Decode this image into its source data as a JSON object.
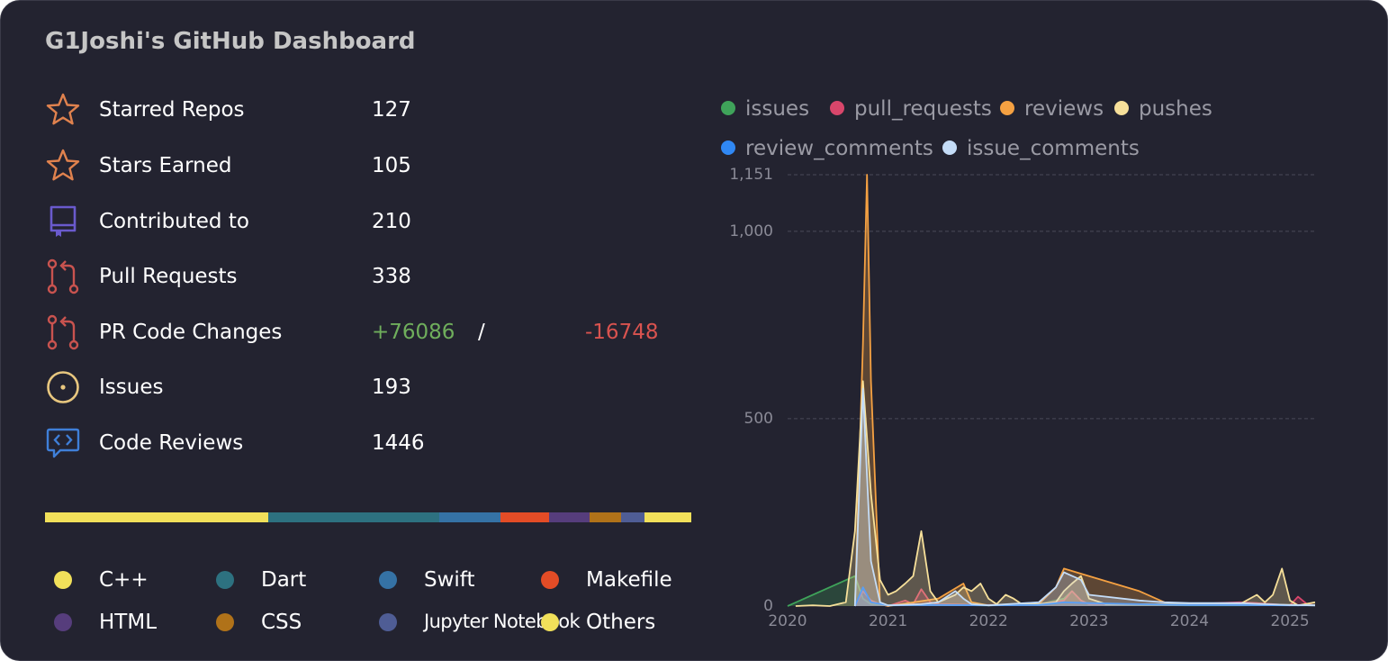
{
  "title": "G1Joshi's GitHub Dashboard",
  "colors": {
    "background": "#232330",
    "star": "#e0824e",
    "repo": "#6a5acd",
    "pr": "#c9534f",
    "issue": "#e8c77f",
    "review": "#3f7fd8",
    "plus": "#6fae5c",
    "minus": "#d9534f"
  },
  "stats": [
    {
      "icon": "star-icon",
      "label": "Starred Repos",
      "value": "127"
    },
    {
      "icon": "star-icon",
      "label": "Stars Earned",
      "value": "105"
    },
    {
      "icon": "repo-icon",
      "label": "Contributed to",
      "value": "210"
    },
    {
      "icon": "pull-request-icon",
      "label": "Pull Requests",
      "value": "338"
    },
    {
      "icon": "pull-request-icon",
      "label": "PR Code Changes",
      "plus": "+76086",
      "slash": "/",
      "minus": "-16748"
    },
    {
      "icon": "issue-icon",
      "label": "Issues",
      "value": "193"
    },
    {
      "icon": "code-review-icon",
      "label": "Code Reviews",
      "value": "1446"
    }
  ],
  "languages": [
    {
      "name": "C++",
      "color": "#f1e05a",
      "share": 34.5
    },
    {
      "name": "Dart",
      "color": "#2d7180",
      "share": 26.5
    },
    {
      "name": "Swift",
      "color": "#3572a5",
      "share": 9.5
    },
    {
      "name": "Makefile",
      "color": "#e34c26",
      "share": 7.5
    },
    {
      "name": "HTML",
      "color": "#563d7c",
      "share": 6.3
    },
    {
      "name": "CSS",
      "color": "#b07219",
      "share": 4.8
    },
    {
      "name": "Jupyter Notebook",
      "color": "#4f5d95",
      "share": 3.6
    },
    {
      "name": "Others",
      "color": "#f1e05a",
      "share": 7.3
    }
  ],
  "chart_data": {
    "type": "area",
    "legend_position": "top",
    "grid": true,
    "x_ticks": [
      "2020",
      "2021",
      "2022",
      "2023",
      "2024",
      "2025"
    ],
    "y_ticks": [
      "1,151",
      "1,000",
      "500",
      "0"
    ],
    "ylim": [
      0,
      1151
    ],
    "xlim": [
      2020.0,
      2025.25
    ],
    "series": [
      {
        "name": "issues",
        "color": "#3fa35a",
        "points": [
          [
            2020.0,
            0
          ],
          [
            2020.67,
            80
          ],
          [
            2020.75,
            20
          ],
          [
            2020.83,
            5
          ],
          [
            2021.0,
            2
          ],
          [
            2021.5,
            3
          ],
          [
            2022.0,
            2
          ],
          [
            2022.5,
            5
          ],
          [
            2022.75,
            20
          ],
          [
            2022.83,
            40
          ],
          [
            2022.92,
            15
          ],
          [
            2023.0,
            5
          ],
          [
            2023.5,
            3
          ],
          [
            2024.0,
            2
          ],
          [
            2024.5,
            2
          ],
          [
            2025.0,
            3
          ],
          [
            2025.25,
            2
          ]
        ]
      },
      {
        "name": "pull_requests",
        "color": "#d9466b",
        "points": [
          [
            2020.67,
            0
          ],
          [
            2020.75,
            40
          ],
          [
            2020.83,
            15
          ],
          [
            2020.92,
            5
          ],
          [
            2021.0,
            0
          ],
          [
            2021.17,
            15
          ],
          [
            2021.25,
            5
          ],
          [
            2021.33,
            45
          ],
          [
            2021.42,
            10
          ],
          [
            2021.5,
            5
          ],
          [
            2022.0,
            3
          ],
          [
            2022.5,
            5
          ],
          [
            2022.75,
            15
          ],
          [
            2022.83,
            40
          ],
          [
            2022.92,
            15
          ],
          [
            2023.0,
            5
          ],
          [
            2023.5,
            5
          ],
          [
            2024.0,
            5
          ],
          [
            2024.5,
            10
          ],
          [
            2024.67,
            8
          ],
          [
            2024.83,
            5
          ],
          [
            2025.0,
            2
          ],
          [
            2025.08,
            25
          ],
          [
            2025.17,
            5
          ],
          [
            2025.25,
            2
          ]
        ]
      },
      {
        "name": "reviews",
        "color": "#f5a142",
        "points": [
          [
            2020.67,
            0
          ],
          [
            2020.75,
            700
          ],
          [
            2020.79,
            1151
          ],
          [
            2020.83,
            600
          ],
          [
            2020.92,
            5
          ],
          [
            2021.0,
            0
          ],
          [
            2021.5,
            20
          ],
          [
            2021.75,
            60
          ],
          [
            2021.83,
            10
          ],
          [
            2022.0,
            2
          ],
          [
            2022.5,
            5
          ],
          [
            2022.67,
            50
          ],
          [
            2022.75,
            100
          ],
          [
            2023.0,
            80
          ],
          [
            2023.5,
            40
          ],
          [
            2023.75,
            10
          ],
          [
            2024.0,
            5
          ],
          [
            2024.5,
            5
          ],
          [
            2025.0,
            3
          ],
          [
            2025.25,
            2
          ]
        ]
      },
      {
        "name": "pushes",
        "color": "#f7e09a",
        "points": [
          [
            2020.08,
            0
          ],
          [
            2020.25,
            2
          ],
          [
            2020.42,
            0
          ],
          [
            2020.5,
            5
          ],
          [
            2020.58,
            10
          ],
          [
            2020.67,
            200
          ],
          [
            2020.75,
            600
          ],
          [
            2020.83,
            300
          ],
          [
            2020.92,
            70
          ],
          [
            2021.0,
            30
          ],
          [
            2021.08,
            40
          ],
          [
            2021.17,
            60
          ],
          [
            2021.25,
            80
          ],
          [
            2021.33,
            200
          ],
          [
            2021.42,
            40
          ],
          [
            2021.5,
            10
          ],
          [
            2021.67,
            30
          ],
          [
            2021.75,
            50
          ],
          [
            2021.83,
            40
          ],
          [
            2021.92,
            60
          ],
          [
            2022.0,
            20
          ],
          [
            2022.08,
            5
          ],
          [
            2022.17,
            30
          ],
          [
            2022.25,
            20
          ],
          [
            2022.33,
            5
          ],
          [
            2022.5,
            5
          ],
          [
            2022.67,
            10
          ],
          [
            2022.75,
            40
          ],
          [
            2022.83,
            60
          ],
          [
            2022.92,
            80
          ],
          [
            2023.0,
            20
          ],
          [
            2023.17,
            5
          ],
          [
            2023.5,
            5
          ],
          [
            2024.0,
            5
          ],
          [
            2024.5,
            5
          ],
          [
            2024.67,
            30
          ],
          [
            2024.75,
            10
          ],
          [
            2024.83,
            30
          ],
          [
            2024.92,
            100
          ],
          [
            2025.0,
            15
          ],
          [
            2025.08,
            2
          ],
          [
            2025.25,
            10
          ]
        ]
      },
      {
        "name": "review_comments",
        "color": "#3088f4",
        "points": [
          [
            2020.67,
            0
          ],
          [
            2020.75,
            50
          ],
          [
            2020.83,
            10
          ],
          [
            2021.0,
            2
          ],
          [
            2021.5,
            3
          ],
          [
            2022.0,
            2
          ],
          [
            2022.5,
            3
          ],
          [
            2022.75,
            10
          ],
          [
            2023.0,
            8
          ],
          [
            2023.5,
            5
          ],
          [
            2024.0,
            3
          ],
          [
            2024.5,
            3
          ],
          [
            2025.0,
            2
          ],
          [
            2025.25,
            2
          ]
        ]
      },
      {
        "name": "issue_comments",
        "color": "#c4dcf7",
        "points": [
          [
            2020.67,
            0
          ],
          [
            2020.75,
            580
          ],
          [
            2020.83,
            120
          ],
          [
            2020.92,
            10
          ],
          [
            2021.0,
            2
          ],
          [
            2021.33,
            5
          ],
          [
            2021.5,
            10
          ],
          [
            2021.67,
            40
          ],
          [
            2021.75,
            20
          ],
          [
            2021.83,
            5
          ],
          [
            2022.0,
            2
          ],
          [
            2022.5,
            10
          ],
          [
            2022.67,
            50
          ],
          [
            2022.75,
            90
          ],
          [
            2022.92,
            70
          ],
          [
            2023.0,
            30
          ],
          [
            2023.5,
            15
          ],
          [
            2023.75,
            10
          ],
          [
            2024.0,
            8
          ],
          [
            2024.5,
            8
          ],
          [
            2024.75,
            5
          ],
          [
            2025.0,
            3
          ],
          [
            2025.25,
            2
          ]
        ]
      }
    ]
  }
}
